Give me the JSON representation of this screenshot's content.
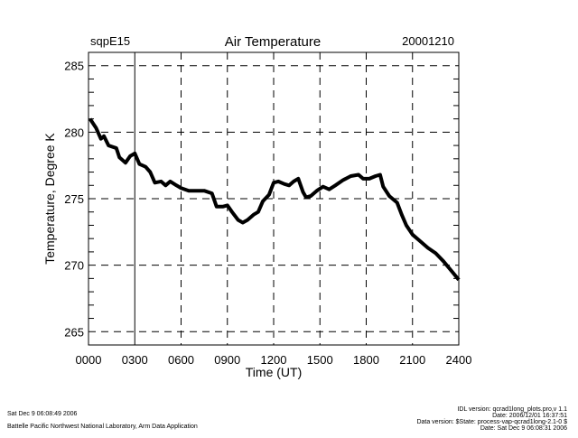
{
  "chart_data": {
    "type": "line",
    "title": "Air Temperature",
    "site": "sqpE15",
    "date": "20001210",
    "xlabel": "Time (UT)",
    "ylabel": "Temperature, Degree K",
    "xlim": [
      0,
      24
    ],
    "ylim": [
      264,
      286
    ],
    "x_ticks": [
      0,
      3,
      6,
      9,
      12,
      15,
      18,
      21,
      24
    ],
    "x_tick_labels": [
      "0000",
      "0300",
      "0600",
      "0900",
      "1200",
      "1500",
      "1800",
      "2100",
      "2400"
    ],
    "y_ticks": [
      265,
      270,
      275,
      280,
      285
    ],
    "y_tick_labels": [
      "265",
      "270",
      "275",
      "280",
      "285"
    ],
    "grid": true,
    "series": [
      {
        "name": "Air Temperature",
        "color": "#000000",
        "x": [
          0.1,
          0.5,
          0.8,
          1.0,
          1.3,
          1.8,
          2.0,
          2.4,
          2.7,
          3.0,
          3.3,
          3.7,
          4.0,
          4.3,
          4.7,
          5.0,
          5.3,
          5.7,
          6.0,
          6.5,
          7.0,
          7.5,
          8.0,
          8.3,
          8.7,
          9.0,
          9.3,
          9.7,
          10.0,
          10.3,
          10.7,
          11.0,
          11.3,
          11.7,
          12.0,
          12.3,
          12.7,
          13.0,
          13.3,
          13.6,
          13.9,
          14.1,
          14.4,
          14.8,
          15.2,
          15.6,
          16.0,
          16.5,
          17.0,
          17.5,
          17.8,
          18.2,
          18.6,
          18.9,
          19.1,
          19.5,
          20.0,
          20.3,
          20.6,
          21.0,
          21.5,
          22.0,
          22.5,
          23.0,
          23.5,
          24.0
        ],
        "y": [
          281.0,
          280.3,
          279.5,
          279.7,
          279.0,
          278.8,
          278.1,
          277.7,
          278.2,
          278.4,
          277.6,
          277.4,
          277.0,
          276.2,
          276.3,
          276.0,
          276.3,
          276.0,
          275.8,
          275.6,
          275.6,
          275.6,
          275.4,
          274.4,
          274.4,
          274.5,
          274.0,
          273.4,
          273.2,
          273.4,
          273.8,
          274.0,
          274.8,
          275.3,
          276.2,
          276.3,
          276.1,
          276.0,
          276.3,
          276.5,
          275.5,
          275.1,
          275.2,
          275.6,
          275.9,
          275.7,
          276.0,
          276.4,
          276.7,
          276.8,
          276.5,
          276.5,
          276.7,
          276.8,
          275.9,
          275.2,
          274.7,
          273.8,
          273.0,
          272.3,
          271.8,
          271.3,
          270.9,
          270.3,
          269.6,
          268.9
        ]
      }
    ]
  },
  "footer": {
    "left_line1": "Sat Dec  9 06:08:49 2006",
    "left_line2": "Battelle Pacific Northwest National Laboratory, Arm Data Application",
    "right_line1": "IDL version: qcrad1long_plots.pro,v 1.1",
    "right_line2": "Date: 2006/12/01 16:37:51",
    "right_line3": "Data version: $State: process-vap-qcrad1long-2.1-0 $",
    "right_line4": "Date: Sat Dec  9 06:08:31 2006"
  }
}
